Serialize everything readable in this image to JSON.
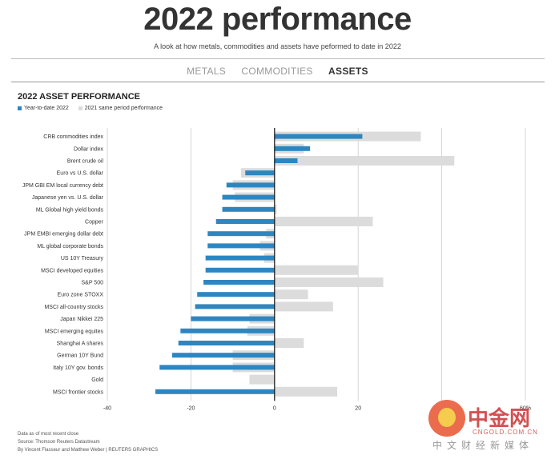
{
  "header": {
    "title": "2022 performance",
    "subtitle": "A look at how metals, commodities and assets have peformed to date in 2022"
  },
  "tabs": [
    {
      "label": "METALS",
      "active": false
    },
    {
      "label": "COMMODITIES",
      "active": false
    },
    {
      "label": "ASSETS",
      "active": true
    }
  ],
  "legend": {
    "series_2022": "Year-to-date 2022",
    "series_2021": "2021 same period performance"
  },
  "colors": {
    "series_2022": "#2e86c1",
    "series_2021": "#dcdcdc",
    "zero_line": "#111111",
    "grid": "#cccccc"
  },
  "chart_data": {
    "type": "bar",
    "title": "2022 ASSET PERFORMANCE",
    "orientation": "horizontal",
    "xlim": [
      -40,
      60
    ],
    "xticks": [
      -40,
      -20,
      0,
      20,
      40,
      60
    ],
    "xtick_labels": [
      "-40",
      "-20",
      "0",
      "20",
      "",
      "60%"
    ],
    "grid": true,
    "legend_position": "top-left",
    "categories": [
      "CRB commodities index",
      "Dollar index",
      "Brent crude oil",
      "Euro vs U.S. dollar",
      "JPM GBI EM local currency debt",
      "Japanese yen vs. U.S. dollar",
      "ML Global high yield bonds",
      "Copper",
      "JPM EMBI emerging dollar debt",
      "ML global corporate bonds",
      "US 10Y Treasury",
      "MSCI developed equities",
      "S&P 500",
      "Euro zone STOXX",
      "MSCI all-country stocks",
      "Japan Nikkei 225",
      "MSCI emerging equites",
      "Shanghai A shares",
      "German 10Y Bund",
      "Italy 10Y gov. bonds",
      "Gold",
      "MSCI frontier stocks"
    ],
    "series": [
      {
        "name": "Year-to-date 2022",
        "values": [
          21,
          8.5,
          5.5,
          -7,
          -11.5,
          -12.5,
          -12.5,
          -14,
          -16,
          -16,
          -16.5,
          -16.5,
          -17,
          -18.5,
          -19,
          -20,
          -22.5,
          -23,
          -24.5,
          -27.5,
          0,
          -28.5
        ]
      },
      {
        "name": "2021 same period performance",
        "values": [
          35,
          7,
          43,
          -8,
          -10,
          -9.5,
          0.5,
          23.5,
          -2,
          -3.5,
          -2.5,
          20,
          26,
          8,
          14,
          -6,
          -6.5,
          7,
          -10,
          -10,
          -6,
          15
        ]
      }
    ]
  },
  "footnotes": {
    "line1": "Data as of most recent close",
    "line2": "Source: Thomson Reuters Datastream",
    "line3": "By Vincent Flasseur and Matthew Weber | REUTERS GRAPHICS"
  },
  "watermark": {
    "brand": "中金网",
    "url": "CNGOLD.COM.CN",
    "tagline": "中文财经新媒体"
  }
}
